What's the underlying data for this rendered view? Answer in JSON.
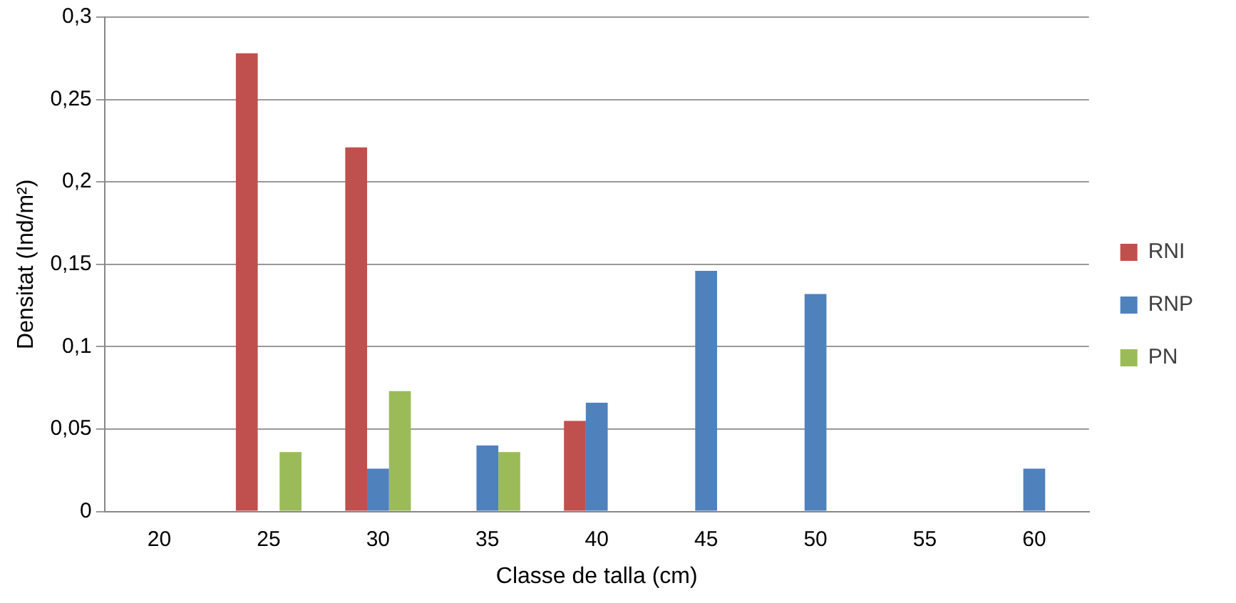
{
  "chart_data": {
    "type": "bar",
    "xlabel": "Classe de talla (cm)",
    "ylabel": "Densitat (Ind/m²)",
    "categories": [
      "20",
      "25",
      "30",
      "35",
      "40",
      "45",
      "50",
      "55",
      "60"
    ],
    "series": [
      {
        "name": "RNI",
        "color": "#c0504d",
        "values": [
          null,
          0.278,
          0.221,
          null,
          0.055,
          null,
          null,
          null,
          null
        ]
      },
      {
        "name": "RNP",
        "color": "#4f81bd",
        "values": [
          null,
          null,
          0.026,
          0.04,
          0.066,
          0.146,
          0.132,
          null,
          0.026
        ]
      },
      {
        "name": "PN",
        "color": "#9bbb59",
        "values": [
          null,
          0.036,
          0.073,
          0.036,
          null,
          null,
          null,
          null,
          null
        ]
      }
    ],
    "ylim": [
      0,
      0.3
    ],
    "yticks": [
      {
        "value": 0,
        "label": "0"
      },
      {
        "value": 0.05,
        "label": "0,05"
      },
      {
        "value": 0.1,
        "label": "0,1"
      },
      {
        "value": 0.15,
        "label": "0,15"
      },
      {
        "value": 0.2,
        "label": "0,2"
      },
      {
        "value": 0.25,
        "label": "0,25"
      },
      {
        "value": 0.3,
        "label": "0,3"
      }
    ],
    "grid": "y",
    "legend": "right"
  }
}
